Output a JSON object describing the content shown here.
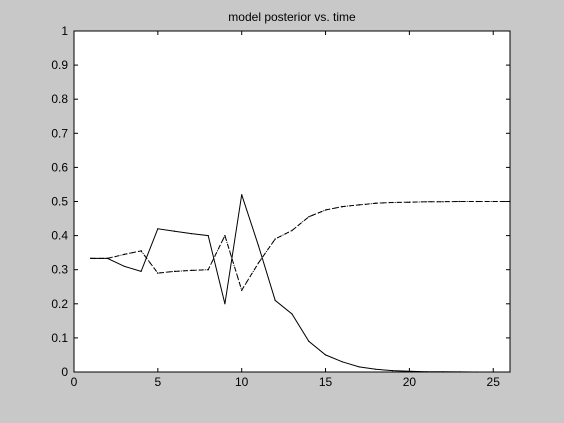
{
  "chart_data": {
    "type": "line",
    "title": "model posterior vs. time",
    "xlabel": "",
    "ylabel": "",
    "xlim": [
      0,
      26
    ],
    "ylim": [
      0,
      1
    ],
    "x_ticks": [
      0,
      5,
      10,
      15,
      20,
      25
    ],
    "y_ticks": [
      0,
      0.1,
      0.2,
      0.3,
      0.4,
      0.5,
      0.6,
      0.7,
      0.8,
      0.9,
      1
    ],
    "grid": false,
    "legend": "none",
    "x": [
      1,
      2,
      3,
      4,
      5,
      6,
      7,
      8,
      9,
      10,
      11,
      12,
      13,
      14,
      15,
      16,
      17,
      18,
      19,
      20,
      21,
      22,
      23,
      24,
      25,
      26
    ],
    "series": [
      {
        "style": "solid",
        "color": "#000000",
        "values": [
          0.333,
          0.333,
          0.31,
          0.295,
          0.42,
          0.413,
          0.406,
          0.4,
          0.2,
          0.52,
          0.37,
          0.21,
          0.17,
          0.09,
          0.05,
          0.03,
          0.015,
          0.008,
          0.004,
          0.002,
          0.001,
          0.0005,
          0.0002,
          0.0001,
          0.0,
          0.0
        ]
      },
      {
        "style": "dashed",
        "color": "#000000",
        "values": [
          0.333,
          0.333,
          0.345,
          0.355,
          0.29,
          0.295,
          0.298,
          0.3,
          0.4,
          0.24,
          0.32,
          0.39,
          0.415,
          0.455,
          0.475,
          0.485,
          0.49,
          0.495,
          0.497,
          0.498,
          0.499,
          0.4995,
          0.5,
          0.5,
          0.5,
          0.5
        ]
      },
      {
        "style": "dotted",
        "color": "#000000",
        "values": [
          0.333,
          0.333,
          0.345,
          0.355,
          0.29,
          0.295,
          0.298,
          0.3,
          0.4,
          0.24,
          0.32,
          0.39,
          0.415,
          0.455,
          0.475,
          0.485,
          0.49,
          0.495,
          0.497,
          0.498,
          0.499,
          0.4995,
          0.5,
          0.5,
          0.5,
          0.5
        ]
      }
    ]
  }
}
